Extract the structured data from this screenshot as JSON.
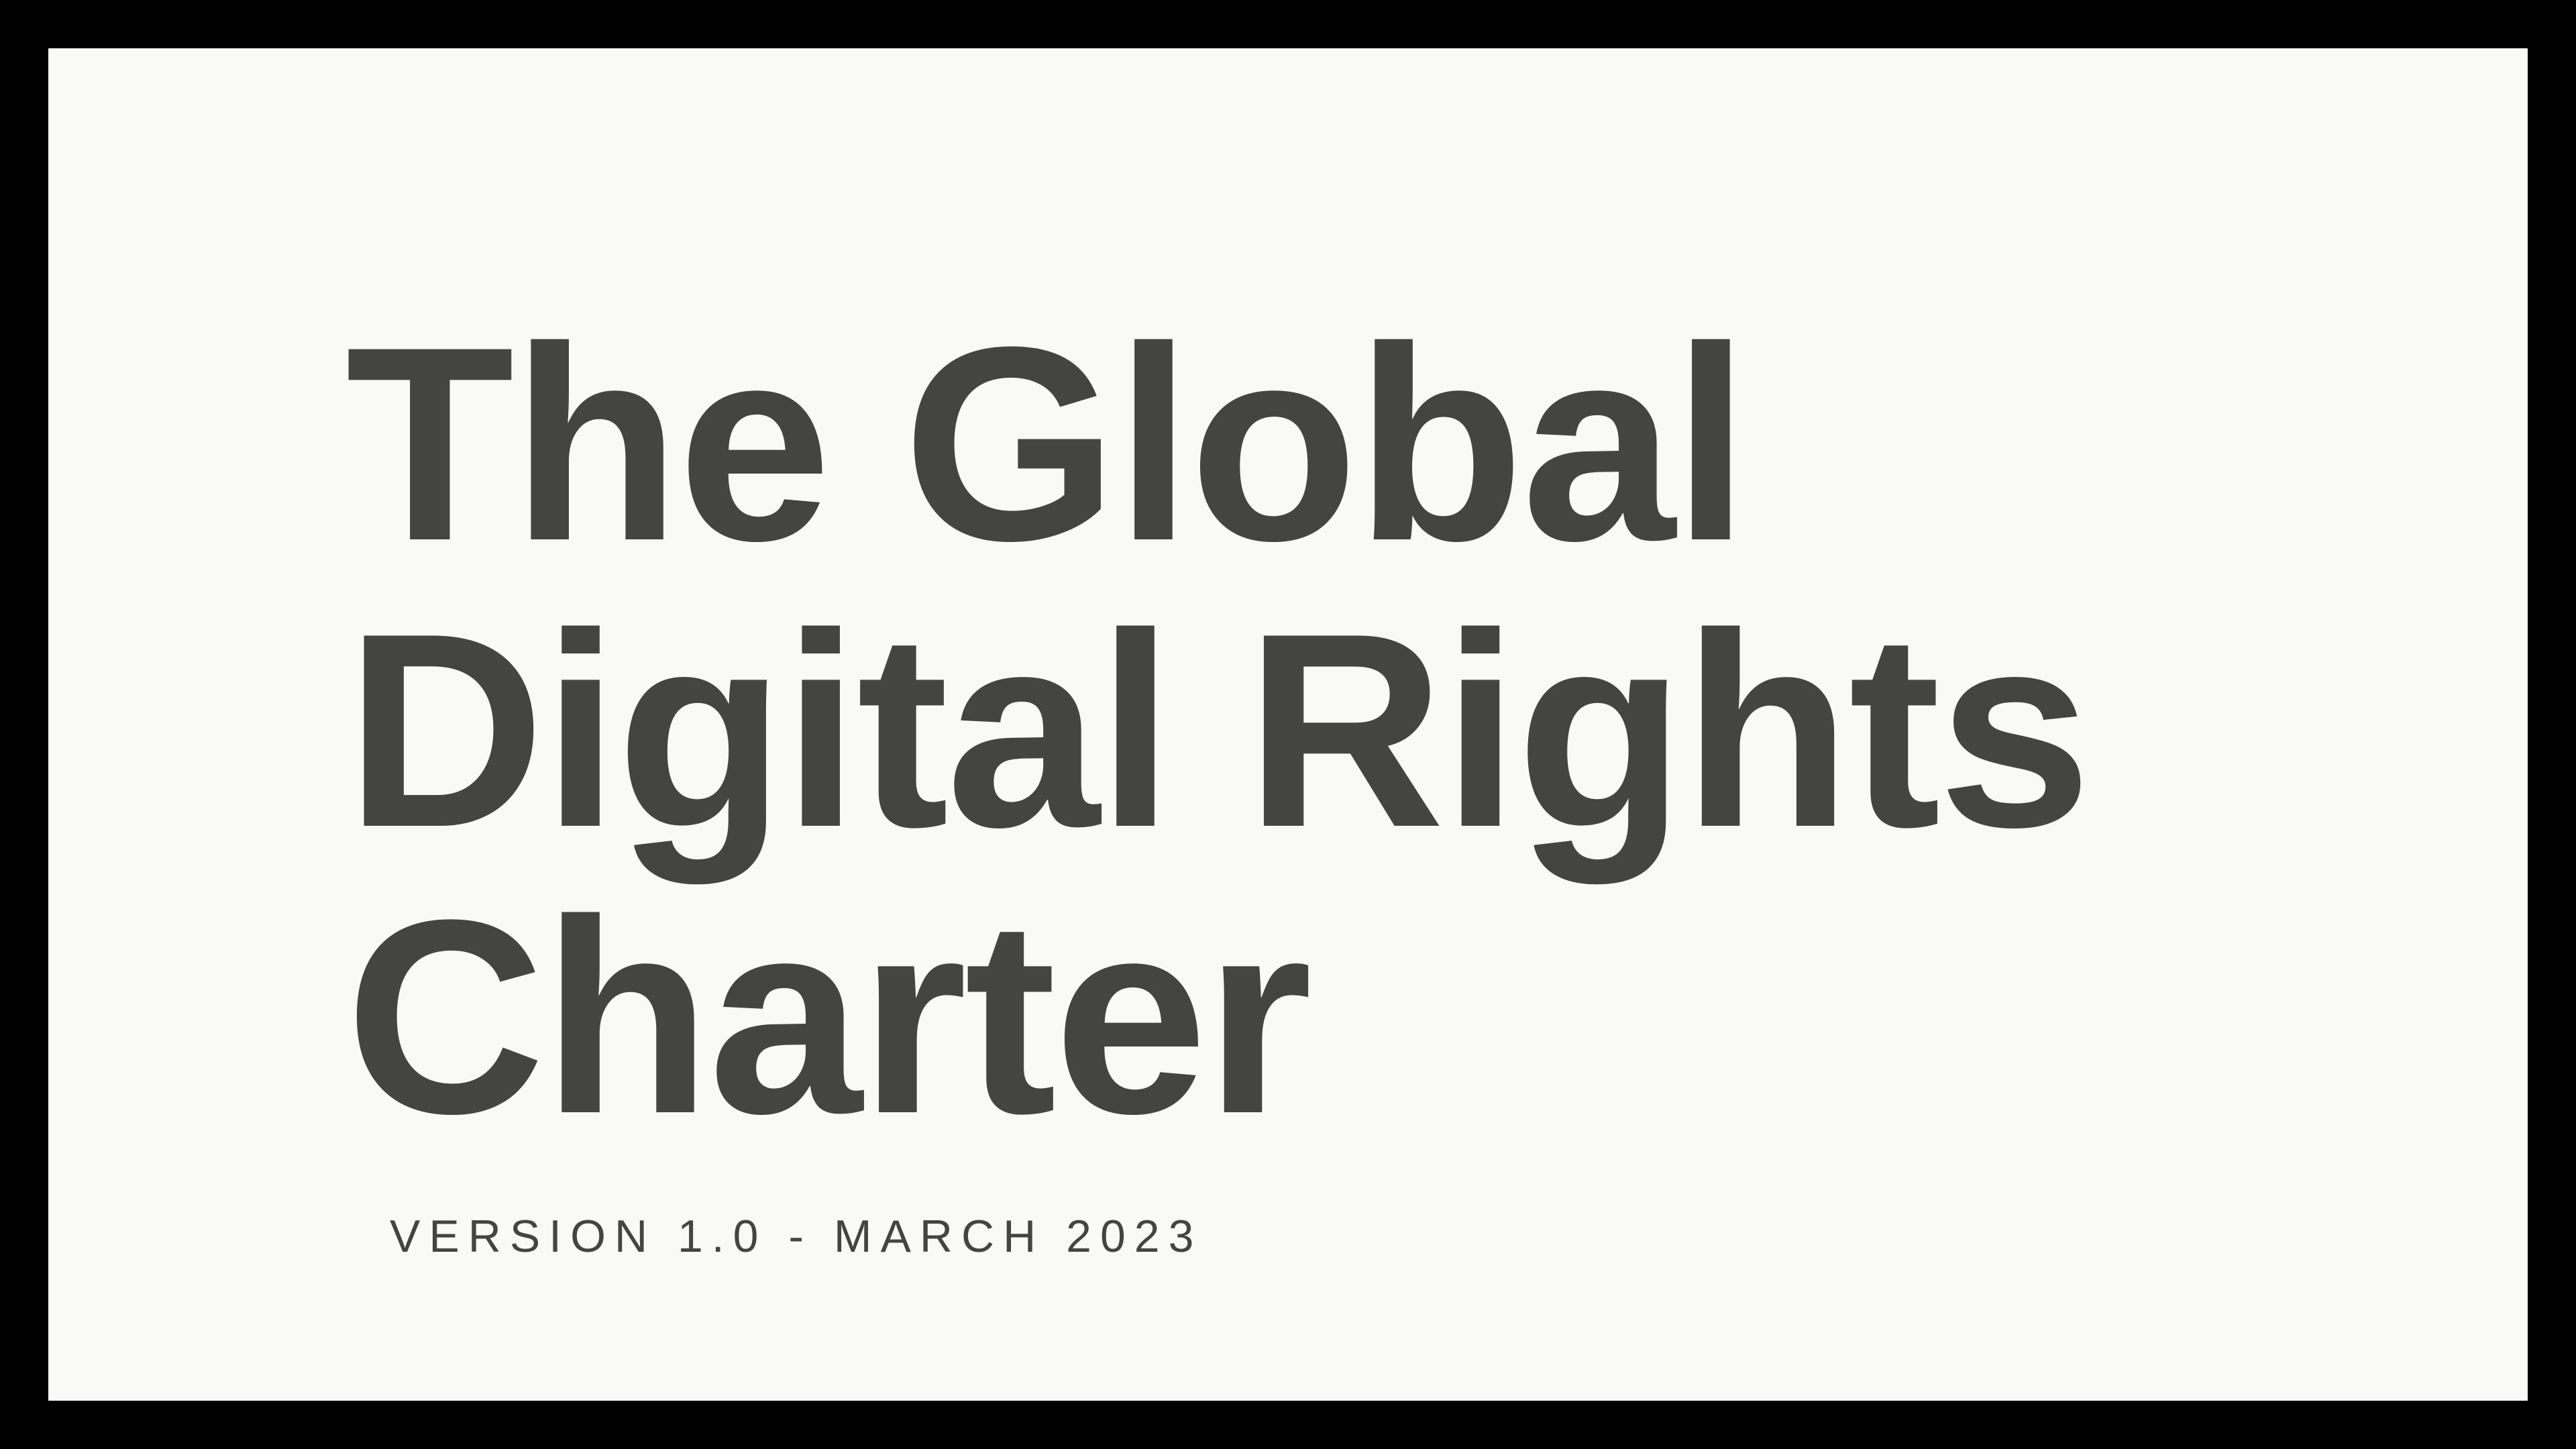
{
  "colors": {
    "frame": "#000000",
    "page_background": "#f9f9f7",
    "text": "#444442"
  },
  "title": {
    "lines": [
      "The Global",
      "Digital Rights",
      "Charter"
    ]
  },
  "subtitle": "VERSION 1.0 - MARCH 2023"
}
